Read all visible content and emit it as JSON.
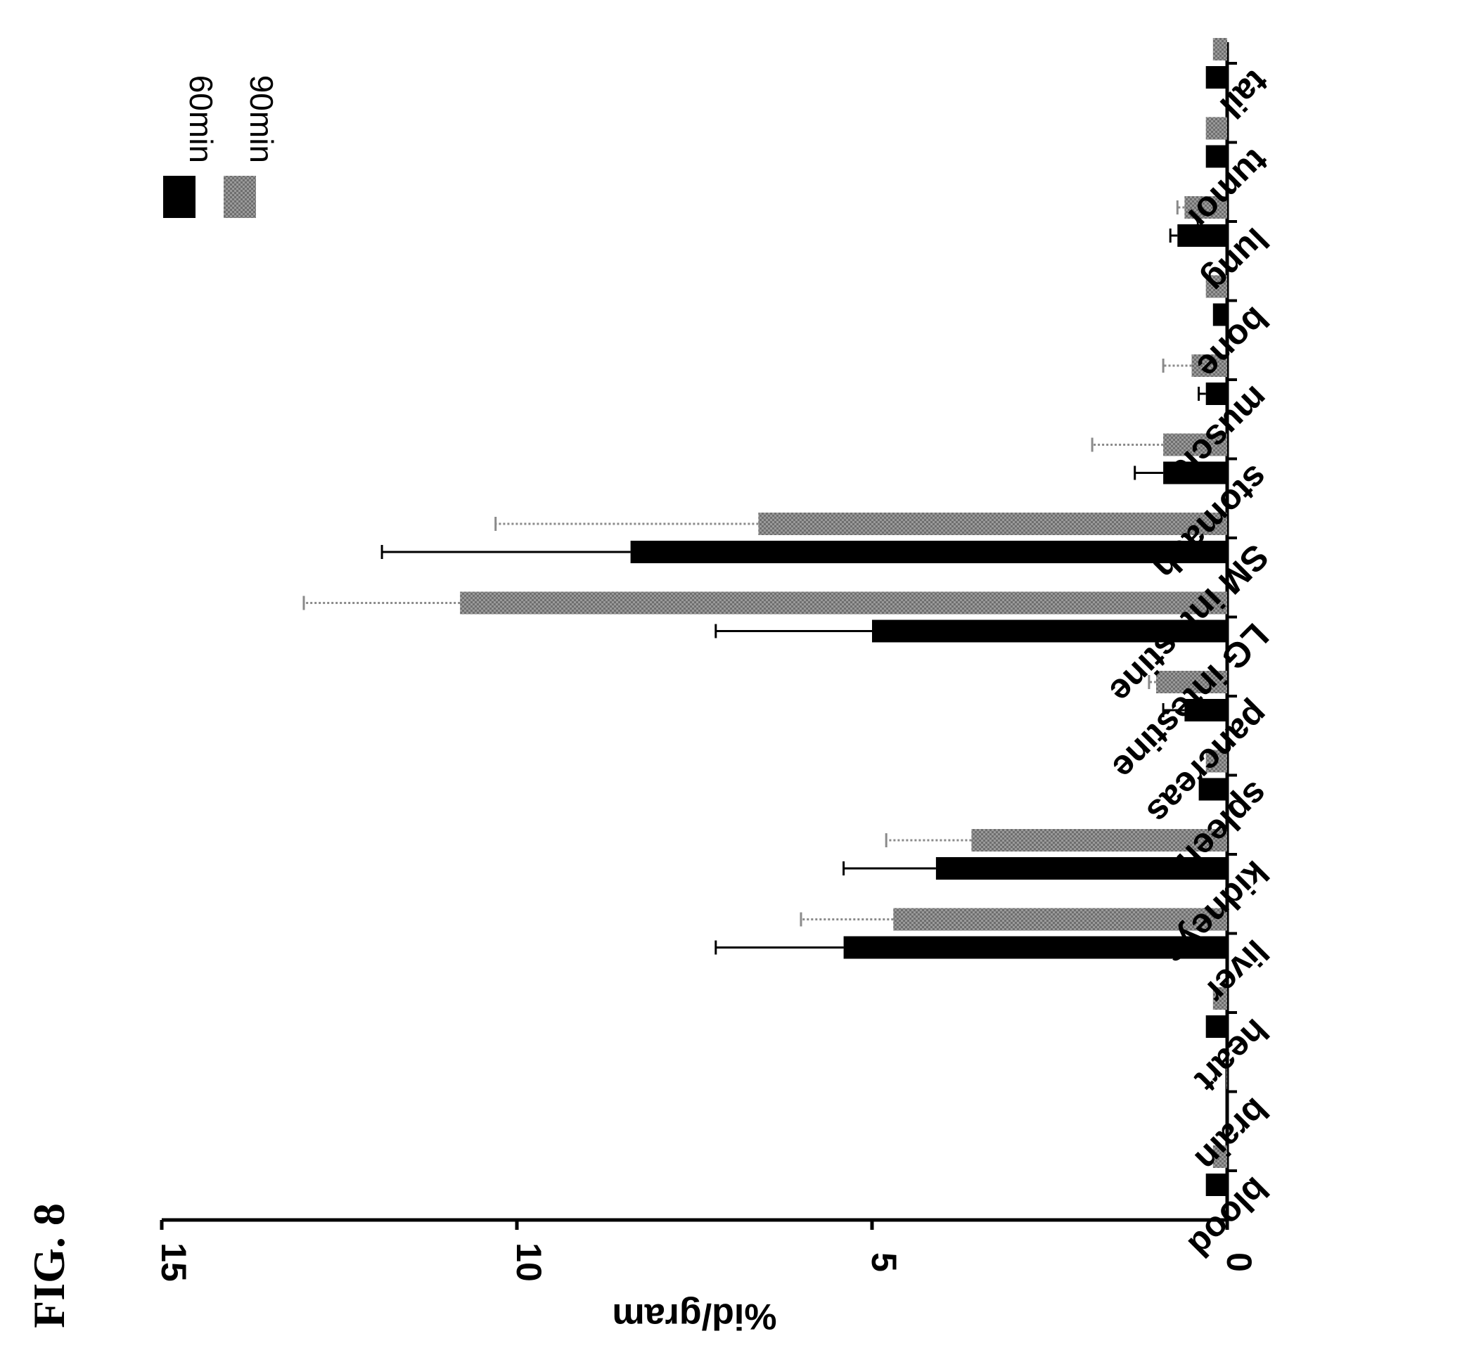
{
  "figure": {
    "label": "FIG. 8"
  },
  "chart_data": {
    "type": "bar",
    "orientation": "horizontal bars, figure printed rotated",
    "ylabel": "%id/gram",
    "ylim": [
      0,
      15
    ],
    "yticks": [
      "0",
      "5",
      "10",
      "15"
    ],
    "categories": [
      "blood",
      "brain",
      "heart",
      "liver",
      "kidneys",
      "spleen",
      "pancreas",
      "LG intestine",
      "SM intestine",
      "stomach",
      "muscle",
      "bone",
      "lung",
      "tumor",
      "tail"
    ],
    "series": [
      {
        "name": "60min",
        "color": "#000000",
        "values": [
          0.3,
          0.02,
          0.3,
          5.4,
          4.1,
          0.4,
          0.6,
          5.0,
          8.4,
          0.9,
          0.3,
          0.2,
          0.7,
          0.3,
          0.3
        ],
        "errors": [
          0.05,
          0.02,
          0.05,
          1.8,
          1.3,
          0.05,
          0.3,
          2.2,
          3.5,
          0.4,
          0.1,
          0.05,
          0.1,
          0.05,
          0.05
        ]
      },
      {
        "name": "90min",
        "color": "#8c8c8c",
        "values": [
          0.2,
          0.01,
          0.2,
          4.7,
          3.6,
          0.3,
          1.0,
          10.8,
          6.6,
          0.9,
          0.5,
          0.3,
          0.6,
          0.3,
          0.2
        ],
        "errors": [
          0.05,
          0.01,
          0.05,
          1.3,
          1.2,
          0.05,
          0.1,
          2.2,
          3.7,
          1.0,
          0.4,
          0.05,
          0.1,
          0.05,
          0.05
        ]
      }
    ],
    "legend": {
      "position": "top-left",
      "items": [
        "60min",
        "90min"
      ]
    },
    "grid": false
  }
}
